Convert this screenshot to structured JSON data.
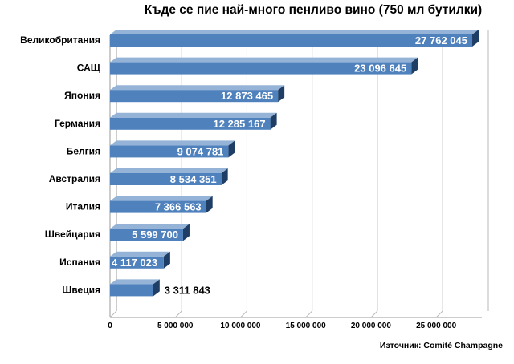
{
  "chart_data": {
    "type": "bar",
    "orientation": "horizontal",
    "title": "Къде се пие най-много пенливо вино (750 мл бутилки)",
    "source": "Източник: Comité Champagne",
    "categories": [
      "Великобритания",
      "САЩ",
      "Япония",
      "Германия",
      "Белгия",
      "Австралия",
      "Италия",
      "Швейцария",
      "Испания",
      "Швеция"
    ],
    "values": [
      27762045,
      23096645,
      12873465,
      12285167,
      9074781,
      8534351,
      7366563,
      5599700,
      4117023,
      3311843
    ],
    "value_labels": [
      "27 762 045",
      "23 096 645",
      "12 873 465",
      "12 285 167",
      "9 074 781",
      "8 534 351",
      "7 366 563",
      "5 599 700",
      "4 117 023",
      "3 311 843"
    ],
    "x_ticks": [
      0,
      5000000,
      10000000,
      15000000,
      20000000,
      25000000
    ],
    "x_tick_labels": [
      "0",
      "5 000 000",
      "10 000 000",
      "15 000 000",
      "20 000 000",
      "25 000 000"
    ],
    "xlim": [
      0,
      28500000
    ],
    "grid": "vertical",
    "colors": {
      "bar_front": "#4f81bd",
      "bar_side": "#1f3e66",
      "bar_top": "#95b3d7",
      "grid": "#b9b9b9",
      "value_label_inside": "#ffffff",
      "value_label_outside": "#000000"
    }
  }
}
